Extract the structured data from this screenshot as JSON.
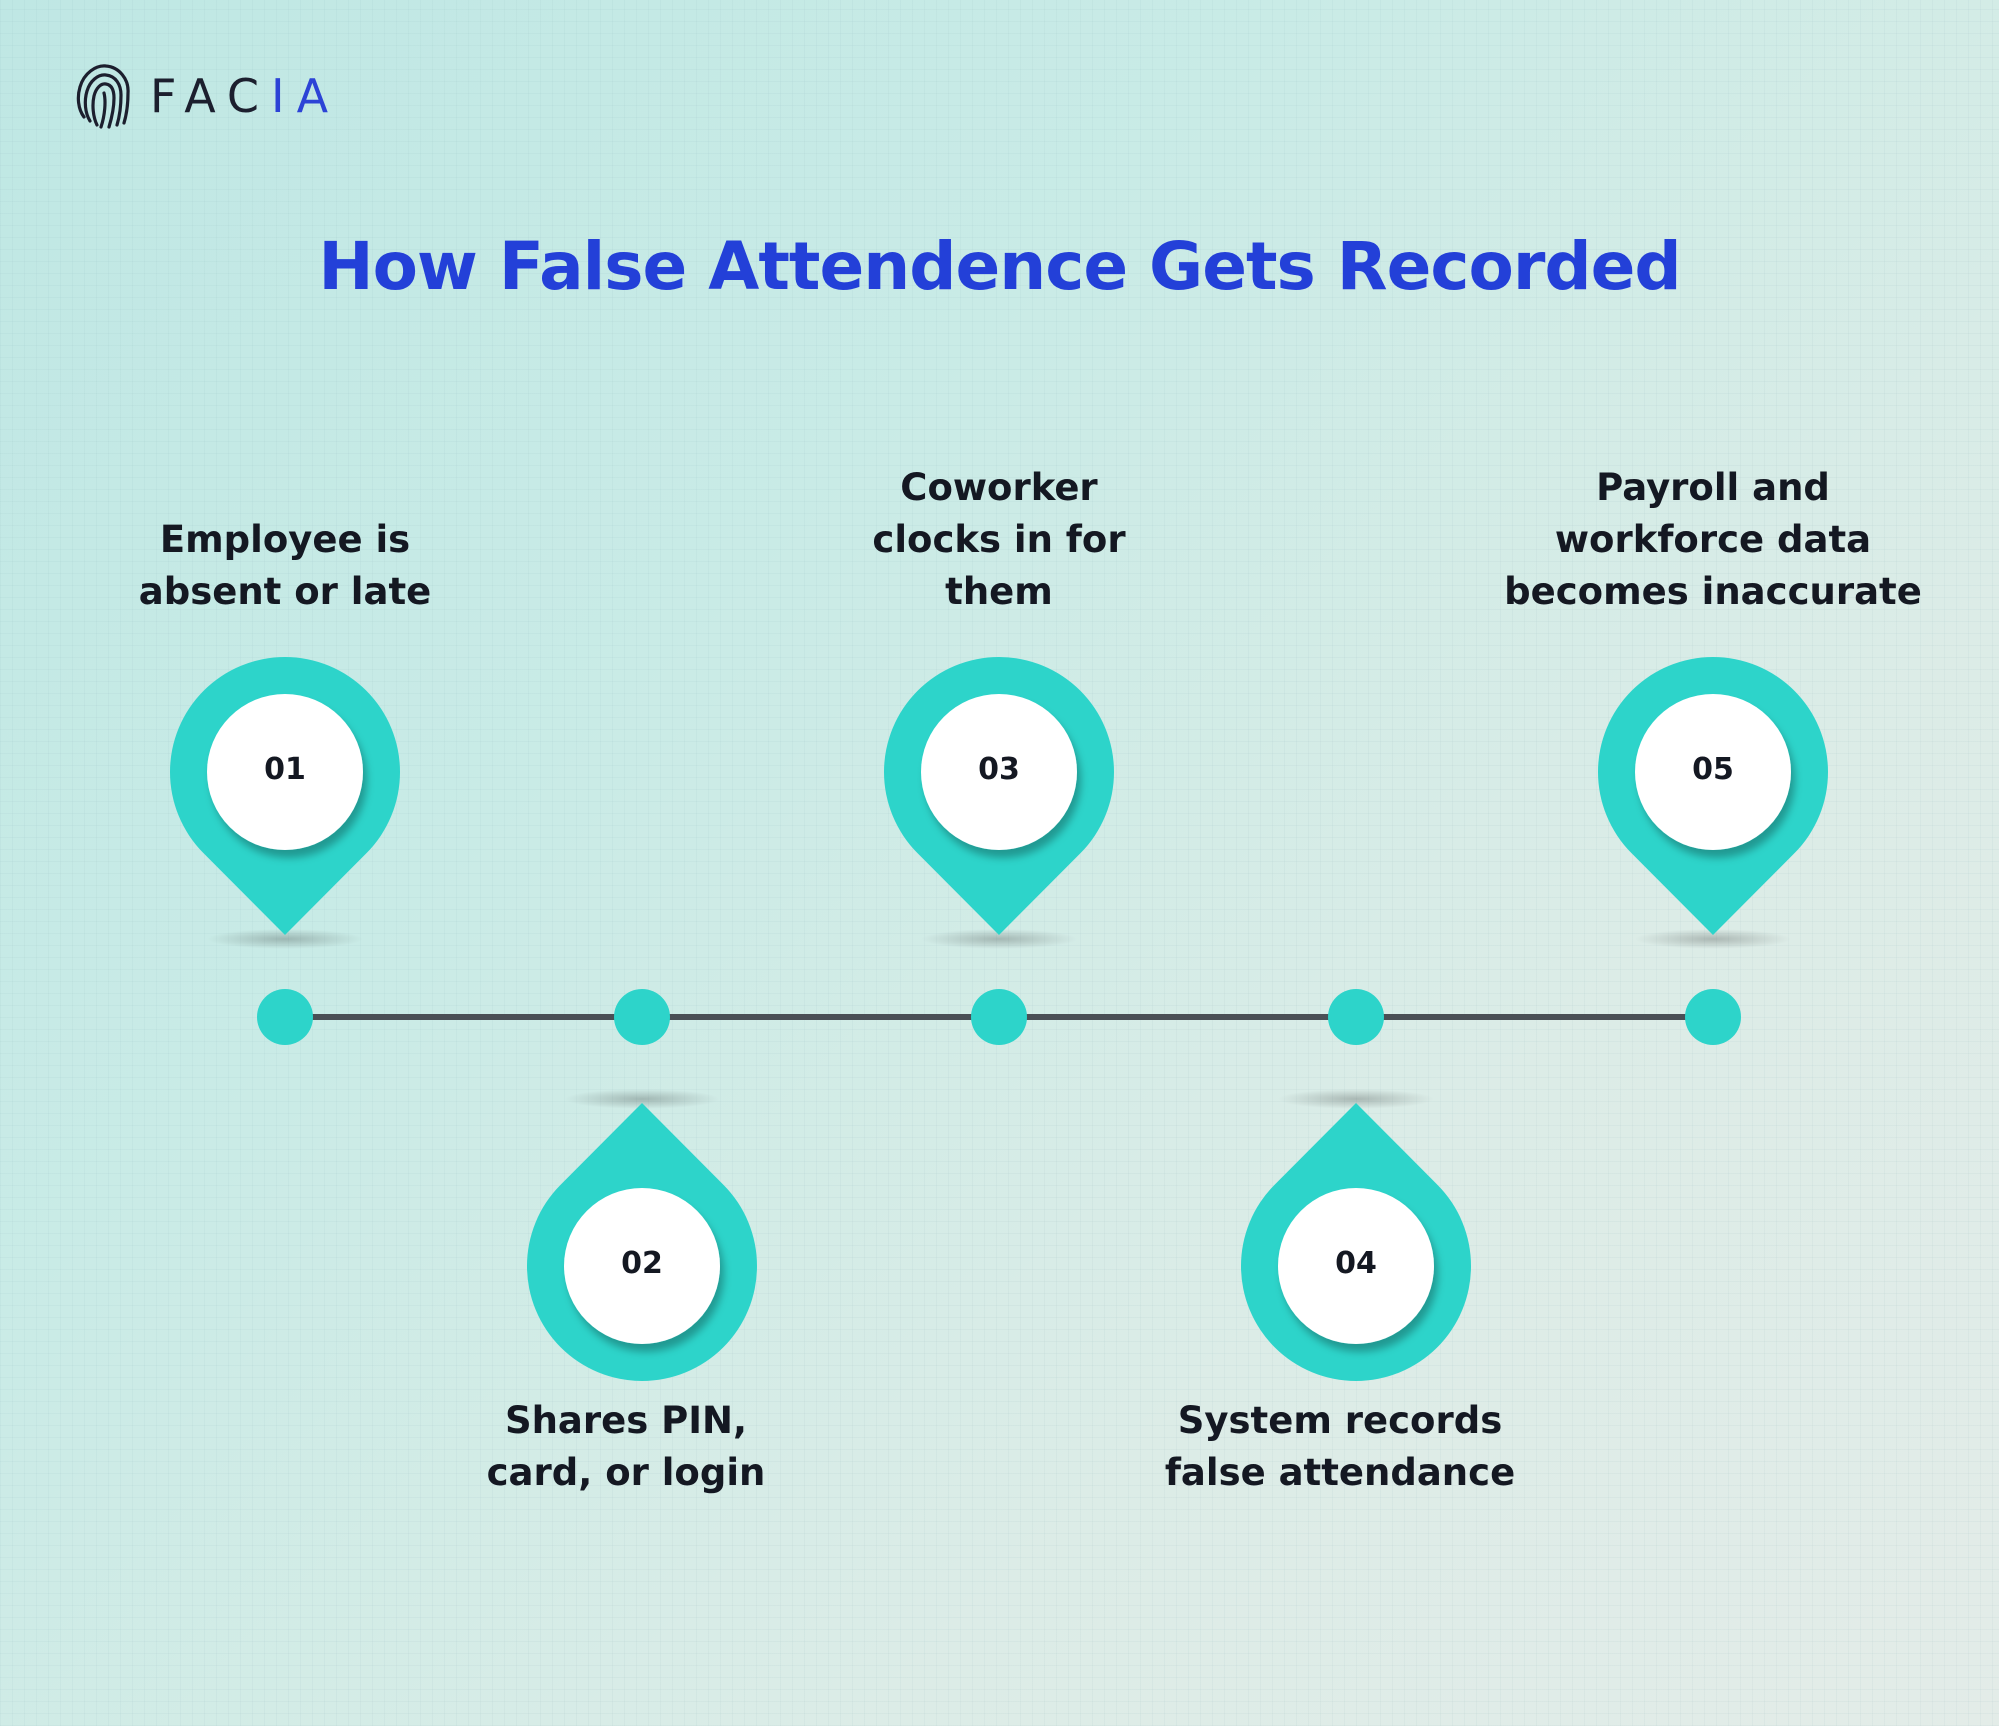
{
  "brand": {
    "logo_text_main": "FAC",
    "logo_text_accent": "IA",
    "icon": "fingerprint-icon"
  },
  "title": "How False Attendence Gets Recorded",
  "colors": {
    "title": "#2340d8",
    "teal": "#2dd4ca",
    "line": "#4a4f55",
    "text": "#141822"
  },
  "steps": [
    {
      "number": "01",
      "label": "Employee is\nabsent or late",
      "position": "top"
    },
    {
      "number": "02",
      "label": "Shares PIN,\ncard, or login",
      "position": "bottom"
    },
    {
      "number": "03",
      "label": "Coworker\nclocks in for\nthem",
      "position": "top"
    },
    {
      "number": "04",
      "label": "System records\nfalse attendance",
      "position": "bottom"
    },
    {
      "number": "05",
      "label": "Payroll and\nworkforce data\nbecomes inaccurate",
      "position": "top"
    }
  ]
}
